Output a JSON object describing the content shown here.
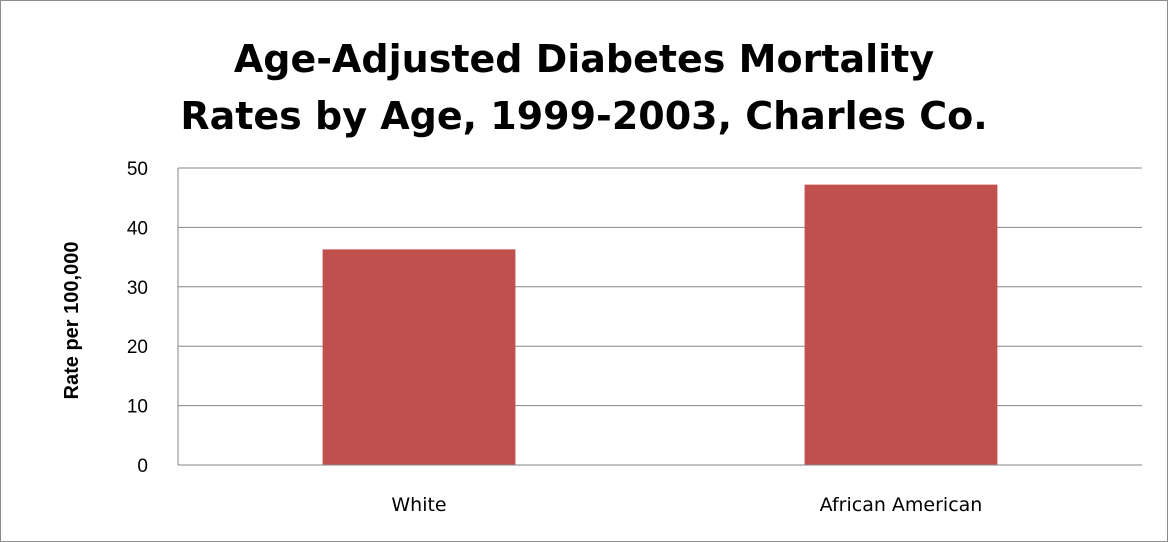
{
  "chart_data": {
    "type": "bar",
    "title": [
      "Age-Adjusted Diabetes Mortality",
      "Rates by Age, 1999-2003, Charles Co."
    ],
    "ylabel": "Rate per 100,000",
    "xlabel": "",
    "categories": [
      "White",
      "African American"
    ],
    "values": [
      36.3,
      47.2
    ],
    "ylim": [
      0,
      50
    ],
    "yticks": [
      "0",
      "10",
      "20",
      "30",
      "40",
      "50"
    ],
    "grid": true,
    "legend": "none",
    "bar_color": "#c0504d"
  }
}
